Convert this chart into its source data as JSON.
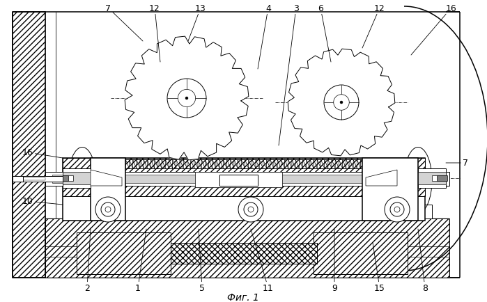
{
  "bg_color": "#ffffff",
  "line_color": "#000000",
  "fig_label": "Фиг. 1",
  "labels": {
    "7_top_left": "7",
    "12_left": "12",
    "13": "13",
    "4": "4",
    "3": "3",
    "6": "6",
    "12_right": "12",
    "16_top": "16",
    "16_left": "16",
    "10": "10",
    "7_right": "7",
    "2": "2",
    "1": "1",
    "5": "5",
    "11": "11",
    "9": "9",
    "15": "15",
    "8": "8"
  }
}
